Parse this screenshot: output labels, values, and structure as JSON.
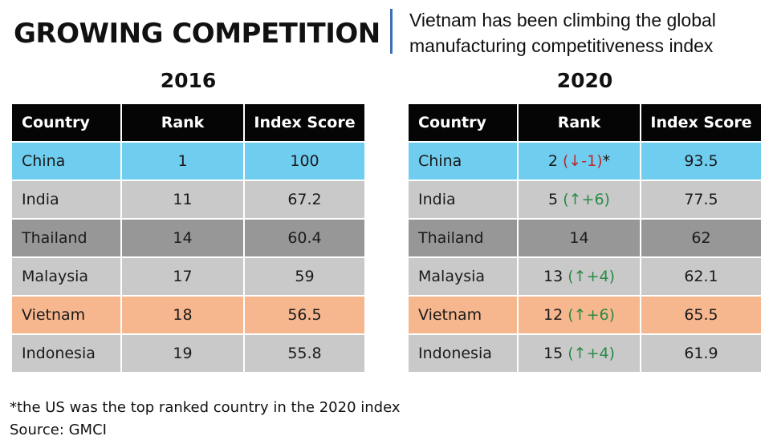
{
  "title": "GROWING COMPETITION",
  "subtitle_line1": "Vietnam has been climbing the global",
  "subtitle_line2": "manufacturing competitiveness index",
  "headers": [
    "Country",
    "Rank",
    "Index Score"
  ],
  "chart_data": [
    {
      "type": "table",
      "title": "2016",
      "columns": [
        "Country",
        "Rank",
        "Index Score"
      ],
      "rows": [
        {
          "country": "China",
          "rank": "1",
          "score": "100",
          "style": "china"
        },
        {
          "country": "India",
          "rank": "11",
          "score": "67.2",
          "style": "gray"
        },
        {
          "country": "Thailand",
          "rank": "14",
          "score": "60.4",
          "style": "dark"
        },
        {
          "country": "Malaysia",
          "rank": "17",
          "score": "59",
          "style": "gray"
        },
        {
          "country": "Vietnam",
          "rank": "18",
          "score": "56.5",
          "style": "orange"
        },
        {
          "country": "Indonesia",
          "rank": "19",
          "score": "55.8",
          "style": "gray"
        }
      ]
    },
    {
      "type": "table",
      "title": "2020",
      "columns": [
        "Country",
        "Rank",
        "Index Score"
      ],
      "rows": [
        {
          "country": "China",
          "rank": "2",
          "change": "(↓-1)",
          "direction": "down",
          "suffix": "*",
          "score": "93.5",
          "style": "china"
        },
        {
          "country": "India",
          "rank": "5",
          "change": "(↑+6)",
          "direction": "up",
          "suffix": "",
          "score": "77.5",
          "style": "gray"
        },
        {
          "country": "Thailand",
          "rank": "14",
          "change": "",
          "direction": "",
          "suffix": "",
          "score": "62",
          "style": "dark"
        },
        {
          "country": "Malaysia",
          "rank": "13",
          "change": "(↑+4)",
          "direction": "up",
          "suffix": "",
          "score": "62.1",
          "style": "gray"
        },
        {
          "country": "Vietnam",
          "rank": "12",
          "change": "(↑+6)",
          "direction": "up",
          "suffix": "",
          "score": "65.5",
          "style": "orange"
        },
        {
          "country": "Indonesia",
          "rank": "15",
          "change": "(↑+4)",
          "direction": "up",
          "suffix": "",
          "score": "61.9",
          "style": "gray"
        }
      ]
    }
  ],
  "footnote": "*the US was the top ranked country in the 2020 index",
  "source": "Source: GMCI"
}
